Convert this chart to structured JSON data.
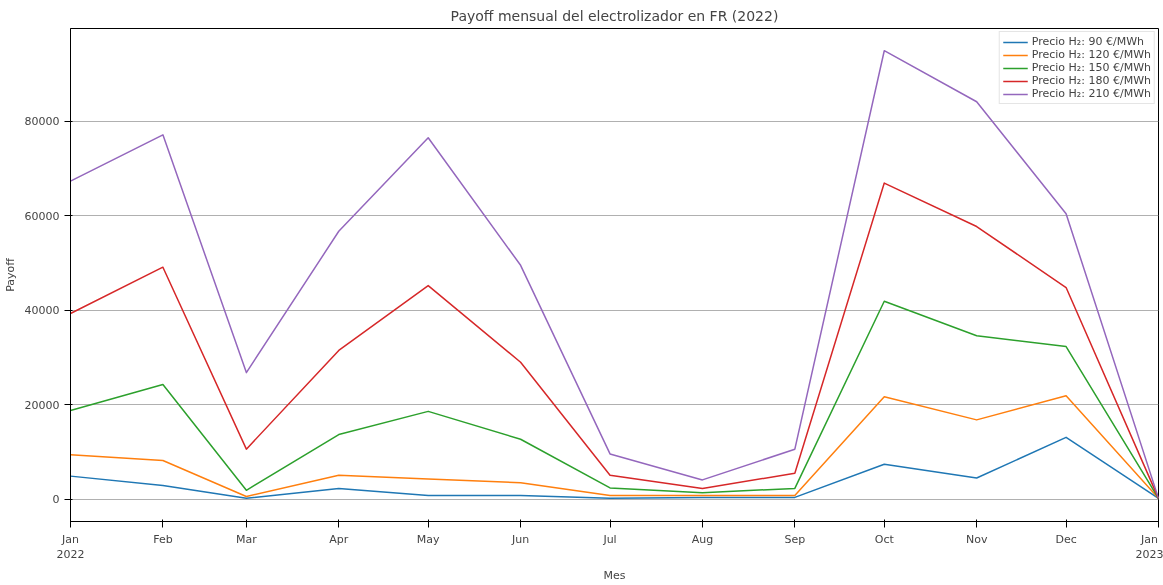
{
  "chart_data": {
    "type": "line",
    "title": "Payoff mensual del electrolizador en FR (2022)",
    "xlabel": "Mes",
    "ylabel": "Payoff",
    "x": [
      "2022-01",
      "2022-02",
      "2022-03",
      "2022-04",
      "2022-05",
      "2022-06",
      "2022-07",
      "2022-08",
      "2022-09",
      "2022-10",
      "2022-11",
      "2022-12",
      "2023-01"
    ],
    "series": [
      {
        "name": "Precio H₂: 90 €/MWh",
        "color": "#1f77b4",
        "values": [
          4900,
          2900,
          200,
          2300,
          800,
          800,
          200,
          400,
          400,
          7400,
          4500,
          13100,
          200
        ]
      },
      {
        "name": "Precio H₂: 120 €/MWh",
        "color": "#ff7f0e",
        "values": [
          9400,
          8200,
          600,
          5100,
          4300,
          3500,
          800,
          800,
          800,
          21700,
          16800,
          21900,
          200
        ]
      },
      {
        "name": "Precio H₂: 150 €/MWh",
        "color": "#2ca02c",
        "values": [
          18800,
          24300,
          1900,
          13700,
          18600,
          12700,
          2400,
          1400,
          2300,
          41900,
          34600,
          32300,
          200
        ]
      },
      {
        "name": "Precio H₂: 180 €/MWh",
        "color": "#d62728",
        "values": [
          39300,
          49100,
          10600,
          31500,
          45200,
          29000,
          5100,
          2300,
          5500,
          66900,
          57700,
          44800,
          200
        ]
      },
      {
        "name": "Precio H₂: 210 €/MWh",
        "color": "#9467bd",
        "values": [
          67300,
          77100,
          26800,
          56700,
          76500,
          49500,
          9600,
          4100,
          10600,
          94900,
          84100,
          60400,
          200
        ]
      }
    ],
    "xlim": [
      "2022-01",
      "2023-01"
    ],
    "xticks": [
      {
        "value": "2022-01",
        "label": "Jan\n2022"
      },
      {
        "value": "2022-02",
        "label": "Feb"
      },
      {
        "value": "2022-03",
        "label": "Mar"
      },
      {
        "value": "2022-04",
        "label": "Apr"
      },
      {
        "value": "2022-05",
        "label": "May"
      },
      {
        "value": "2022-06",
        "label": "Jun"
      },
      {
        "value": "2022-07",
        "label": "Jul"
      },
      {
        "value": "2022-08",
        "label": "Aug"
      },
      {
        "value": "2022-09",
        "label": "Sep"
      },
      {
        "value": "2022-10",
        "label": "Oct"
      },
      {
        "value": "2022-11",
        "label": "Nov"
      },
      {
        "value": "2022-12",
        "label": "Dec"
      },
      {
        "value": "2023-01",
        "label": "Jan\n2023"
      }
    ],
    "ylim": [
      -4700,
      99600
    ],
    "yticks": [
      0,
      20000,
      40000,
      60000,
      80000
    ],
    "grid": "y",
    "legend": "top right",
    "marker": "none",
    "line_style": "solid"
  }
}
